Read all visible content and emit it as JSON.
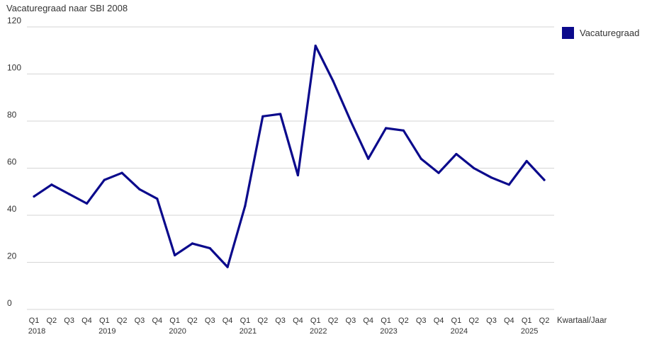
{
  "chart_data": {
    "type": "line",
    "title": "Vacaturegraad naar SBI 2008",
    "xlabel": "Kwartaal/Jaar",
    "ylabel": "",
    "ylim": [
      0,
      120
    ],
    "yticks": [
      0,
      20,
      40,
      60,
      80,
      100,
      120
    ],
    "grid": true,
    "legend_position": "top-right",
    "categories": [
      "Q1",
      "Q2",
      "Q3",
      "Q4",
      "Q1",
      "Q2",
      "Q3",
      "Q4",
      "Q1",
      "Q2",
      "Q3",
      "Q4",
      "Q1",
      "Q2",
      "Q3",
      "Q4",
      "Q1",
      "Q2",
      "Q3",
      "Q4",
      "Q1",
      "Q2",
      "Q3",
      "Q4",
      "Q1",
      "Q2",
      "Q3",
      "Q4",
      "Q1",
      "Q2"
    ],
    "years": [
      {
        "label": "2018",
        "index": 0
      },
      {
        "label": "2019",
        "index": 4
      },
      {
        "label": "2020",
        "index": 8
      },
      {
        "label": "2021",
        "index": 12
      },
      {
        "label": "2022",
        "index": 16
      },
      {
        "label": "2023",
        "index": 20
      },
      {
        "label": "2024",
        "index": 24
      },
      {
        "label": "2025",
        "index": 28
      }
    ],
    "series": [
      {
        "name": "Vacaturegraad",
        "color": "#0b0a8c",
        "values": [
          48,
          53,
          49,
          45,
          55,
          58,
          51,
          47,
          23,
          28,
          26,
          18,
          44,
          82,
          83,
          57,
          112,
          97,
          80,
          64,
          77,
          76,
          64,
          58,
          66,
          60,
          56,
          53,
          63,
          55
        ]
      }
    ]
  }
}
